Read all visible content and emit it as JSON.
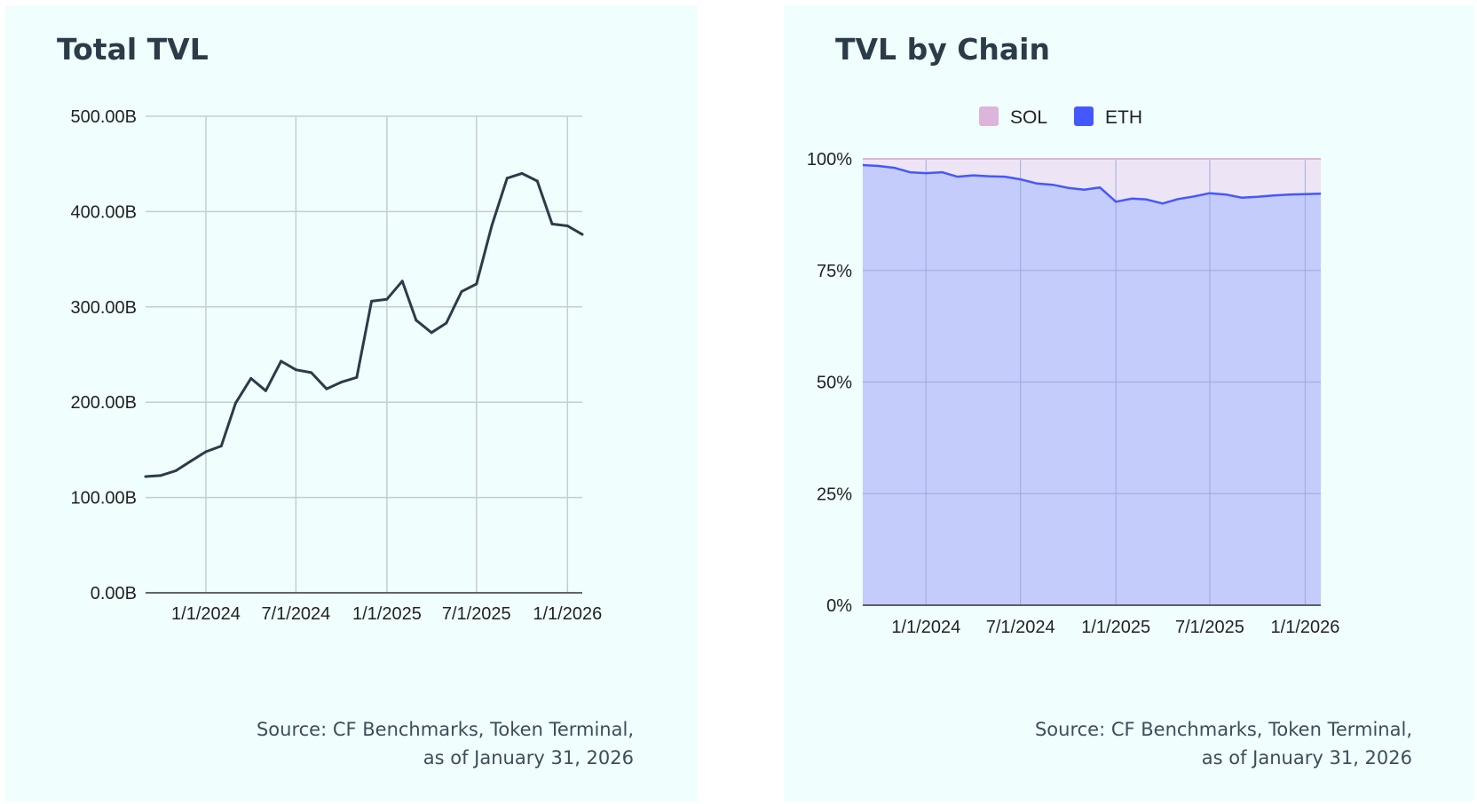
{
  "left_panel": {
    "title": "Total TVL",
    "source_line1": "Source: CF Benchmarks, Token Terminal,",
    "source_line2": "as of January 31, 2026"
  },
  "right_panel": {
    "title": "TVL by Chain",
    "source_line1": "Source: CF Benchmarks, Token Terminal,",
    "source_line2": "as of January 31, 2026"
  },
  "colors": {
    "panel_bg": "#f0fefe",
    "line": "#2b3c48",
    "eth": "#4557ff",
    "eth_fill": "#c3ccfb",
    "sol": "#dcb4dc",
    "sol_fill": "#ede5f6",
    "grid": "#c8cdd0"
  },
  "chart_data": [
    {
      "type": "line",
      "title": "Total TVL",
      "xlabel": "",
      "ylabel": "",
      "x_range": [
        "2023-09-01",
        "2026-01-31"
      ],
      "ylim": [
        0,
        500
      ],
      "yticks": [
        0,
        100,
        200,
        300,
        400,
        500
      ],
      "ytick_labels": [
        "0.00B",
        "100.00B",
        "200.00B",
        "300.00B",
        "400.00B",
        "500.00B"
      ],
      "xticks": [
        "2024-01-01",
        "2024-07-01",
        "2025-01-01",
        "2025-07-01",
        "2026-01-01"
      ],
      "xtick_labels": [
        "1/1/2024",
        "7/1/2024",
        "1/1/2025",
        "7/1/2025",
        "1/1/2026"
      ],
      "grid": true,
      "series": [
        {
          "name": "Total TVL",
          "unit": "B",
          "x": [
            "2023-09-01",
            "2023-10-01",
            "2023-11-01",
            "2023-12-01",
            "2024-01-01",
            "2024-02-01",
            "2024-03-01",
            "2024-04-01",
            "2024-05-01",
            "2024-06-01",
            "2024-07-01",
            "2024-08-01",
            "2024-09-01",
            "2024-10-01",
            "2024-11-01",
            "2024-12-01",
            "2025-01-01",
            "2025-02-01",
            "2025-03-01",
            "2025-04-01",
            "2025-05-01",
            "2025-06-01",
            "2025-07-01",
            "2025-08-01",
            "2025-09-01",
            "2025-10-01",
            "2025-11-01",
            "2025-12-01",
            "2026-01-01",
            "2026-01-31"
          ],
          "values": [
            122,
            123,
            128,
            138,
            148,
            154,
            199,
            225,
            212,
            243,
            234,
            231,
            214,
            221,
            226,
            306,
            308,
            327,
            286,
            273,
            283,
            316,
            324,
            385,
            435,
            440,
            432,
            387,
            385,
            376
          ]
        }
      ]
    },
    {
      "type": "area",
      "title": "TVL by Chain",
      "stacked": true,
      "xlabel": "",
      "ylabel": "",
      "x_range": [
        "2023-09-01",
        "2026-01-31"
      ],
      "ylim": [
        0,
        100
      ],
      "yticks": [
        0,
        25,
        50,
        75,
        100
      ],
      "ytick_labels": [
        "0%",
        "25%",
        "50%",
        "75%",
        "100%"
      ],
      "xticks": [
        "2024-01-01",
        "2024-07-01",
        "2025-01-01",
        "2025-07-01",
        "2026-01-01"
      ],
      "xtick_labels": [
        "1/1/2024",
        "7/1/2024",
        "1/1/2025",
        "7/1/2025",
        "1/1/2026"
      ],
      "grid": true,
      "legend": {
        "position": "top",
        "entries": [
          "SOL",
          "ETH"
        ]
      },
      "x": [
        "2023-09-01",
        "2023-10-01",
        "2023-11-01",
        "2023-12-01",
        "2024-01-01",
        "2024-02-01",
        "2024-03-01",
        "2024-04-01",
        "2024-05-01",
        "2024-06-01",
        "2024-07-01",
        "2024-08-01",
        "2024-09-01",
        "2024-10-01",
        "2024-11-01",
        "2024-12-01",
        "2025-01-01",
        "2025-02-01",
        "2025-03-01",
        "2025-04-01",
        "2025-05-01",
        "2025-06-01",
        "2025-07-01",
        "2025-08-01",
        "2025-09-01",
        "2025-10-01",
        "2025-11-01",
        "2025-12-01",
        "2026-01-01",
        "2026-01-31"
      ],
      "series": [
        {
          "name": "ETH",
          "values": [
            98.6,
            98.4,
            98.0,
            97.0,
            96.8,
            97.0,
            96.0,
            96.3,
            96.1,
            96.0,
            95.4,
            94.5,
            94.2,
            93.5,
            93.1,
            93.6,
            90.4,
            91.1,
            90.9,
            90.0,
            91.0,
            91.6,
            92.3,
            92.0,
            91.3,
            91.5,
            91.8,
            92.0,
            92.1,
            92.2
          ]
        },
        {
          "name": "SOL",
          "values": [
            1.4,
            1.6,
            2.0,
            3.0,
            3.2,
            3.0,
            4.0,
            3.7,
            3.9,
            4.0,
            4.6,
            5.5,
            5.8,
            6.5,
            6.9,
            6.4,
            9.6,
            8.9,
            9.1,
            10.0,
            9.0,
            8.4,
            7.7,
            8.0,
            8.7,
            8.5,
            8.2,
            8.0,
            7.9,
            7.8
          ]
        }
      ]
    }
  ]
}
